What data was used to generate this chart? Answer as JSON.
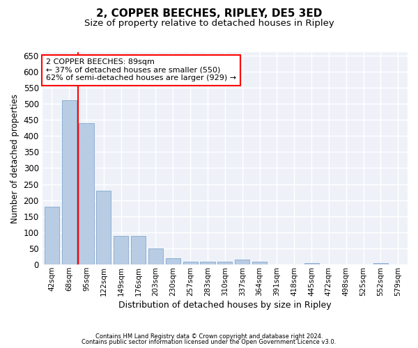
{
  "title": "2, COPPER BEECHES, RIPLEY, DE5 3ED",
  "subtitle": "Size of property relative to detached houses in Ripley",
  "xlabel": "Distribution of detached houses by size in Ripley",
  "ylabel": "Number of detached properties",
  "footer_line1": "Contains HM Land Registry data © Crown copyright and database right 2024.",
  "footer_line2": "Contains public sector information licensed under the Open Government Licence v3.0.",
  "bin_labels": [
    "42sqm",
    "68sqm",
    "95sqm",
    "122sqm",
    "149sqm",
    "176sqm",
    "203sqm",
    "230sqm",
    "257sqm",
    "283sqm",
    "310sqm",
    "337sqm",
    "364sqm",
    "391sqm",
    "418sqm",
    "445sqm",
    "472sqm",
    "498sqm",
    "525sqm",
    "552sqm",
    "579sqm"
  ],
  "bar_values": [
    180,
    510,
    440,
    230,
    90,
    90,
    50,
    20,
    10,
    8,
    8,
    15,
    8,
    0,
    0,
    5,
    0,
    0,
    0,
    5,
    0
  ],
  "bar_color": "#b8cce4",
  "bar_edgecolor": "#8dafd4",
  "property_line_x": 1.5,
  "property_line_color": "red",
  "annotation_line1": "2 COPPER BEECHES: 89sqm",
  "annotation_line2": "← 37% of detached houses are smaller (550)",
  "annotation_line3": "62% of semi-detached houses are larger (929) →",
  "annotation_box_color": "red",
  "ylim": [
    0,
    660
  ],
  "yticks": [
    0,
    50,
    100,
    150,
    200,
    250,
    300,
    350,
    400,
    450,
    500,
    550,
    600,
    650
  ],
  "background_color": "#eef2f8",
  "grid_color": "white",
  "title_fontsize": 11,
  "subtitle_fontsize": 9.5,
  "annotation_fontsize": 8
}
